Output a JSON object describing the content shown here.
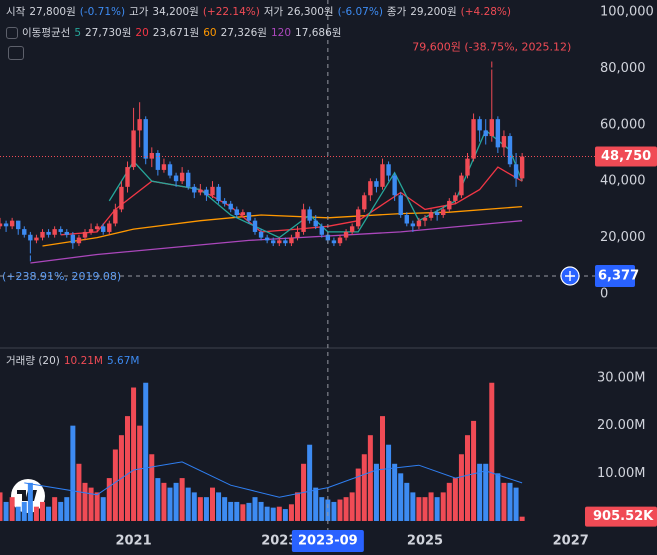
{
  "header": [
    {
      "label": "시작",
      "value": "27,800원",
      "change": "(-0.71%)",
      "color": "#3d8bf2"
    },
    {
      "label": "고가",
      "value": "34,200원",
      "change": "(+22.14%)",
      "color": "#f04b55"
    },
    {
      "label": "저가",
      "value": "26,300원",
      "change": "(-6.07%)",
      "color": "#3d8bf2"
    },
    {
      "label": "종가",
      "value": "29,200원",
      "change": "(+4.28%)",
      "color": "#f04b55"
    }
  ],
  "chart_data": {
    "type": "candlestick",
    "x": [
      "2019-03",
      "2019-04",
      "2019-05",
      "2019-06",
      "2019-07",
      "2019-08",
      "2019-09",
      "2019-10",
      "2019-11",
      "2019-12",
      "2020-01",
      "2020-02",
      "2020-03",
      "2020-04",
      "2020-05",
      "2020-06",
      "2020-07",
      "2020-08",
      "2020-09",
      "2020-10",
      "2020-11",
      "2020-12",
      "2021-01",
      "2021-02",
      "2021-03",
      "2021-04",
      "2021-05",
      "2021-06",
      "2021-07",
      "2021-08",
      "2021-09",
      "2021-10",
      "2021-11",
      "2021-12",
      "2022-01",
      "2022-02",
      "2022-03",
      "2022-04",
      "2022-05",
      "2022-06",
      "2022-07",
      "2022-08",
      "2022-09",
      "2022-10",
      "2022-11",
      "2022-12",
      "2023-01",
      "2023-02",
      "2023-03",
      "2023-04",
      "2023-05",
      "2023-06",
      "2023-07",
      "2023-08",
      "2023-09",
      "2023-10",
      "2023-11",
      "2023-12",
      "2024-01",
      "2024-02",
      "2024-03",
      "2024-04",
      "2024-05",
      "2024-06",
      "2024-07",
      "2024-08",
      "2024-09",
      "2024-10",
      "2024-11",
      "2024-12",
      "2025-01",
      "2025-02",
      "2025-03",
      "2025-04",
      "2025-05",
      "2025-06",
      "2025-07",
      "2025-08",
      "2025-09",
      "2025-10",
      "2025-11",
      "2025-12",
      "2026-01",
      "2026-02",
      "2026-03",
      "2026-04",
      "2026-05"
    ],
    "open": [
      24000,
      25000,
      24000,
      26000,
      23000,
      21000,
      19000,
      20000,
      22000,
      21000,
      23000,
      22000,
      21000,
      18000,
      20000,
      22000,
      23000,
      24000,
      22000,
      25000,
      30000,
      38000,
      45000,
      58000,
      62000,
      48000,
      50000,
      44000,
      46000,
      42000,
      40000,
      43000,
      38000,
      36000,
      37000,
      35000,
      38000,
      33000,
      32000,
      30000,
      28000,
      29000,
      26000,
      22000,
      20000,
      19000,
      18000,
      19000,
      18000,
      20000,
      22000,
      30000,
      26000,
      24000,
      21000,
      19000,
      18000,
      20000,
      22000,
      24000,
      30000,
      35000,
      40000,
      38000,
      46000,
      42000,
      35000,
      28000,
      25000,
      24000,
      26000,
      27000,
      29000,
      28000,
      30000,
      33000,
      35000,
      42000,
      48000,
      62000,
      58000,
      56000,
      62000,
      52000,
      56000,
      46000,
      41000
    ],
    "high": [
      27000,
      26000,
      27000,
      26000,
      24000,
      22000,
      21000,
      23000,
      23000,
      24000,
      24000,
      23000,
      22000,
      21000,
      23000,
      25000,
      25000,
      25000,
      26000,
      32000,
      40000,
      47000,
      66000,
      68000,
      63000,
      52000,
      51000,
      48000,
      47000,
      43000,
      45000,
      44000,
      39000,
      39000,
      38000,
      40000,
      39000,
      34000,
      33000,
      31000,
      30000,
      29000,
      27000,
      23000,
      21000,
      20000,
      20000,
      20000,
      21000,
      24000,
      32000,
      31000,
      28000,
      25000,
      22000,
      20000,
      21000,
      23000,
      25000,
      31000,
      36000,
      41000,
      41000,
      48000,
      47000,
      43000,
      36000,
      29000,
      26000,
      27000,
      28000,
      30000,
      30000,
      31000,
      34000,
      36000,
      43000,
      50000,
      64000,
      63000,
      62000,
      79600,
      63000,
      58000,
      57000,
      50000,
      50000
    ],
    "low": [
      23000,
      22000,
      23000,
      21000,
      20000,
      14384,
      18000,
      19000,
      20000,
      20000,
      21000,
      20000,
      16000,
      17000,
      19000,
      21000,
      22000,
      21000,
      21000,
      24000,
      29000,
      36000,
      44000,
      52000,
      46000,
      45000,
      42000,
      43000,
      41000,
      38000,
      39000,
      37000,
      34000,
      35000,
      33000,
      34000,
      32000,
      31000,
      29000,
      27000,
      27000,
      25000,
      21000,
      19000,
      18000,
      17000,
      17000,
      17000,
      17000,
      19000,
      21000,
      25000,
      23000,
      20000,
      18000,
      17000,
      17000,
      19000,
      21000,
      23000,
      29000,
      33000,
      36000,
      37000,
      40000,
      33000,
      27000,
      24000,
      22000,
      23000,
      24000,
      26000,
      26000,
      27000,
      29000,
      32000,
      34000,
      41000,
      47000,
      54000,
      53000,
      54000,
      50000,
      49000,
      45000,
      38000,
      40000
    ],
    "close": [
      25000,
      24000,
      26000,
      23000,
      21000,
      19000,
      20000,
      22000,
      21000,
      23000,
      22000,
      21000,
      18000,
      20000,
      22000,
      23000,
      24000,
      22000,
      25000,
      30000,
      38000,
      45000,
      58000,
      62000,
      48000,
      50000,
      44000,
      46000,
      42000,
      40000,
      43000,
      38000,
      36000,
      37000,
      35000,
      38000,
      33000,
      32000,
      30000,
      28000,
      29000,
      26000,
      22000,
      20000,
      19000,
      18000,
      19000,
      18000,
      20000,
      22000,
      30000,
      26000,
      24000,
      21000,
      19000,
      18000,
      20000,
      22000,
      24000,
      30000,
      35000,
      40000,
      38000,
      46000,
      42000,
      35000,
      28000,
      25000,
      24000,
      26000,
      27000,
      29000,
      28000,
      30000,
      33000,
      35000,
      42000,
      48000,
      62000,
      58000,
      56000,
      62000,
      52000,
      56000,
      46000,
      41000,
      48750
    ],
    "up_color": "#f04b55",
    "down_color": "#3d8bf2",
    "ylim": [
      -18800,
      104250
    ],
    "yticks": [
      0,
      {
        "value": 20000,
        "label": "20,000"
      },
      {
        "value": 40000,
        "label": "40,000"
      },
      {
        "value": 60000,
        "label": "60,000"
      },
      {
        "value": 80000,
        "label": "80,000"
      },
      {
        "value": 100000,
        "label": "100,000"
      }
    ],
    "xlim": [
      "2019-03",
      "2027-05"
    ],
    "xticks": [
      "2021",
      "2023",
      "2025",
      "2027"
    ],
    "ma_title": "이동평균선",
    "series": [
      {
        "name": "5",
        "color": "#26a69a",
        "legend_value": "27,730원",
        "x": [
          "2020-09",
          "2021-01",
          "2021-04",
          "2021-12",
          "2022-05",
          "2023-01",
          "2023-06",
          "2023-09",
          "2024-02",
          "2024-08",
          "2024-12",
          "2025-06",
          "2025-11",
          "2026-03",
          "2026-05"
        ],
        "values": [
          33000,
          47000,
          40000,
          37000,
          28000,
          20000,
          28000,
          22000,
          22000,
          43000,
          26000,
          33000,
          58000,
          51000,
          40000
        ]
      },
      {
        "name": "20",
        "color": "#f23645",
        "legend_value": "23,671원",
        "x": [
          "2020-01",
          "2020-07",
          "2020-10",
          "2021-04",
          "2021-12",
          "2022-05",
          "2022-10",
          "2023-04",
          "2023-09",
          "2024-02",
          "2024-09",
          "2025-01",
          "2025-06",
          "2025-10",
          "2026-01",
          "2026-05"
        ],
        "values": [
          21000,
          22000,
          30000,
          40000,
          37000,
          31000,
          22000,
          23000,
          24000,
          26000,
          36000,
          30000,
          32000,
          37000,
          45000,
          40000
        ]
      },
      {
        "name": "60",
        "color": "#ff9800",
        "legend_value": "27,326원",
        "x": [
          "2019-10",
          "2020-07",
          "2021-01",
          "2021-12",
          "2022-10",
          "2023-09",
          "2024-09",
          "2025-05",
          "2026-05"
        ],
        "values": [
          17000,
          20000,
          23000,
          26000,
          28000,
          27000,
          28500,
          29000,
          31000
        ]
      },
      {
        "name": "120",
        "color": "#ab47bc",
        "legend_value": "17,686원",
        "x": [
          "2019-08",
          "2020-07",
          "2022-08",
          "2024-09",
          "2026-05"
        ],
        "values": [
          11000,
          14000,
          19000,
          22000,
          26000
        ]
      }
    ],
    "peak_label": "79,600원 (-38.75%, 2025.12)",
    "low_label": "(+238.91%, 2019.08)",
    "last_price": {
      "value": 48750,
      "label": "48,750"
    },
    "crosshair": {
      "x": "2023-09",
      "y": {
        "value": 6377,
        "label": "6,377"
      }
    },
    "volume": {
      "title": "거래량 (20)",
      "legend_values": [
        "10.21M",
        "5.67M"
      ],
      "values": [
        6000000,
        4000000,
        5000000,
        3000000,
        4000000,
        8000000,
        3000000,
        4000000,
        3000000,
        5000000,
        4000000,
        5000000,
        20000000,
        12000000,
        8000000,
        7000000,
        6000000,
        5000000,
        9000000,
        15000000,
        18000000,
        22000000,
        28000000,
        20000000,
        29000000,
        14000000,
        9000000,
        8000000,
        7000000,
        8000000,
        9000000,
        7000000,
        6000000,
        5000000,
        5000000,
        7000000,
        6000000,
        5000000,
        4000000,
        4000000,
        3500000,
        3800000,
        5000000,
        4000000,
        3000000,
        2800000,
        3000000,
        2500000,
        3500000,
        6000000,
        12000000,
        16000000,
        7000000,
        5000000,
        4500000,
        4000000,
        4500000,
        5000000,
        6000000,
        11000000,
        14000000,
        18000000,
        12000000,
        22000000,
        16000000,
        12000000,
        10000000,
        8000000,
        6000000,
        5000000,
        5000000,
        6000000,
        5000000,
        6000000,
        8000000,
        9000000,
        14000000,
        18000000,
        21000000,
        12000000,
        12000000,
        29000000,
        10000000,
        8000000,
        8000000,
        7000000,
        905520
      ],
      "ylim": [
        -1890000,
        35870000
      ],
      "yticks": [
        {
          "value": 10000000,
          "label": "10.00M"
        },
        {
          "value": 20000000,
          "label": "20.00M"
        },
        {
          "value": 30000000,
          "label": "30.00M"
        }
      ],
      "ma": {
        "color": "#2f7ff2",
        "x": [
          "2019-07",
          "2020-07",
          "2021-01",
          "2021-09",
          "2022-05",
          "2023-01",
          "2023-09",
          "2024-05",
          "2024-12",
          "2025-06",
          "2025-11",
          "2026-05"
        ],
        "values": [
          8000000,
          5500000,
          10700000,
          12400000,
          7500000,
          5000000,
          7000000,
          10700000,
          11700000,
          9000000,
          10500000,
          8000000
        ]
      },
      "last": {
        "value": 905520,
        "label": "905.52K"
      }
    }
  }
}
